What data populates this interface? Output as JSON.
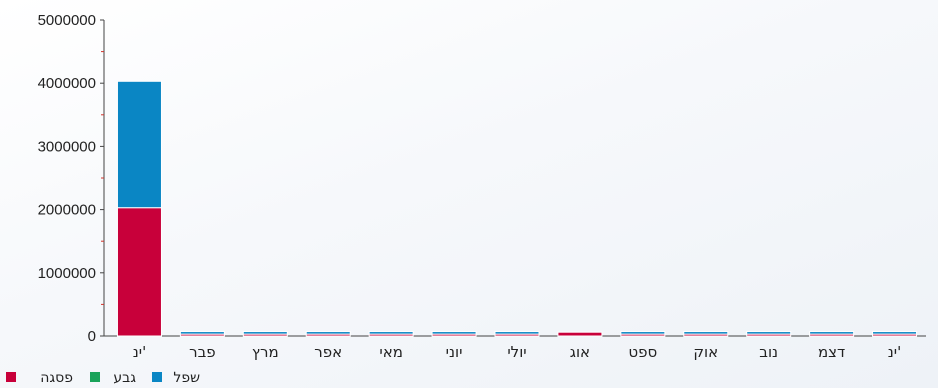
{
  "chart_data": {
    "type": "bar",
    "stacked": true,
    "categories": [
      "ינ'",
      "פבר",
      "מרץ",
      "אפר",
      "מאי",
      "יוני",
      "יולי",
      "אוג",
      "ספט",
      "אוק",
      "נוב",
      "דצמ",
      "ינ'"
    ],
    "series": [
      {
        "name": "פסגה",
        "color": "#c8003a",
        "values": [
          2030000,
          30000,
          30000,
          30000,
          30000,
          30000,
          30000,
          60000,
          30000,
          30000,
          30000,
          30000,
          30000
        ]
      },
      {
        "name": "גבע",
        "color": "#1aa35a",
        "values": [
          0,
          0,
          0,
          0,
          0,
          0,
          0,
          0,
          0,
          0,
          0,
          0,
          0
        ]
      },
      {
        "name": "שפל",
        "color": "#0a86c4",
        "values": [
          2000000,
          40000,
          40000,
          40000,
          40000,
          40000,
          40000,
          0,
          40000,
          40000,
          40000,
          40000,
          40000
        ]
      }
    ],
    "yticks": [
      "0",
      "1000000",
      "2000000",
      "3000000",
      "4000000",
      "5000000"
    ],
    "ylim": [
      0,
      5000000
    ],
    "grid": false,
    "legend_position": "bottom-left"
  }
}
